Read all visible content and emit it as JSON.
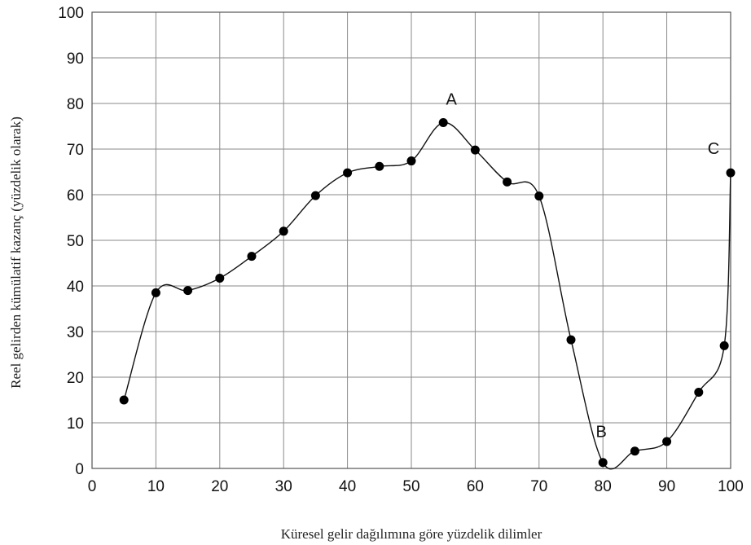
{
  "chart_data": {
    "type": "line",
    "title": "",
    "xlabel": "Küresel gelir dağılımına göre yüzdelik dilimler",
    "ylabel": "Reel gelirden kümülatif kazanç (yüzdelik olarak)",
    "xlim": [
      0,
      100
    ],
    "ylim": [
      0,
      100
    ],
    "xticks": [
      0,
      10,
      20,
      30,
      40,
      50,
      60,
      70,
      80,
      90,
      100
    ],
    "yticks": [
      0,
      10,
      20,
      30,
      40,
      50,
      60,
      70,
      80,
      90,
      100
    ],
    "grid": true,
    "series": [
      {
        "x": [
          5,
          10,
          15,
          20,
          25,
          30,
          35,
          40,
          45,
          50,
          55,
          60,
          65,
          70,
          75,
          80,
          85,
          90,
          95,
          99,
          100
        ],
        "y": [
          15,
          38.5,
          39,
          41.7,
          46.5,
          52,
          59.8,
          64.8,
          66.2,
          67.4,
          75.8,
          69.8,
          62.8,
          59.7,
          28.2,
          1.3,
          3.8,
          5.9,
          16.7,
          26.9,
          64.8
        ]
      }
    ],
    "annotations": [
      {
        "label": "A",
        "x": 55,
        "y": 75.8
      },
      {
        "label": "B",
        "x": 80,
        "y": 1.3
      },
      {
        "label": "C",
        "x": 100,
        "y": 64.8
      }
    ]
  }
}
